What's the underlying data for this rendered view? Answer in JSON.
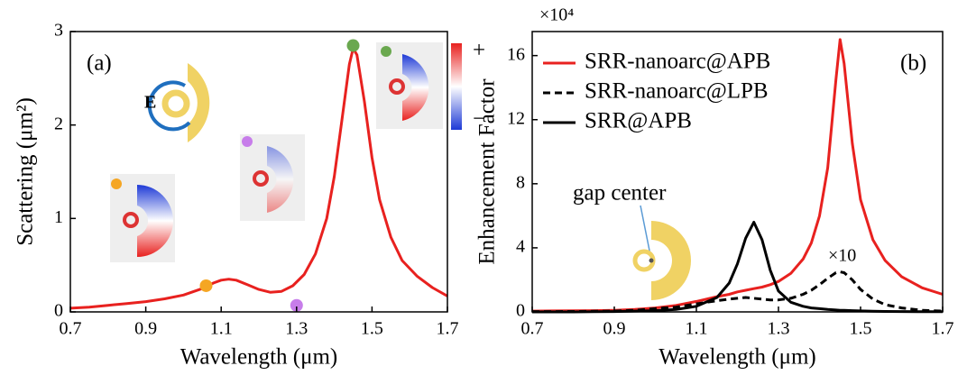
{
  "chart_data": [
    {
      "type": "line",
      "panel_label": "(a)",
      "field_label": "E",
      "colorbar_labels": [
        "+",
        "−"
      ],
      "xlabel": "Wavelength (μm)",
      "ylabel": "Scattering (μm²)",
      "color": "#e8211f",
      "x": [
        0.7,
        0.75,
        0.8,
        0.85,
        0.9,
        0.95,
        1.0,
        1.05,
        1.08,
        1.1,
        1.12,
        1.14,
        1.17,
        1.2,
        1.23,
        1.26,
        1.29,
        1.32,
        1.35,
        1.38,
        1.4,
        1.42,
        1.44,
        1.45,
        1.46,
        1.48,
        1.5,
        1.52,
        1.55,
        1.58,
        1.62,
        1.66,
        1.7
      ],
      "values": [
        0.04,
        0.05,
        0.07,
        0.09,
        0.11,
        0.14,
        0.18,
        0.25,
        0.31,
        0.34,
        0.35,
        0.34,
        0.29,
        0.24,
        0.21,
        0.22,
        0.28,
        0.4,
        0.62,
        1.0,
        1.45,
        2.05,
        2.65,
        2.82,
        2.75,
        2.25,
        1.65,
        1.2,
        0.8,
        0.55,
        0.38,
        0.26,
        0.17
      ],
      "markers": {
        "x": [
          1.06,
          1.3,
          1.45
        ],
        "values": [
          0.28,
          0.07,
          2.85
        ],
        "colors": [
          "#f5a623",
          "#c77dea",
          "#6aa84f"
        ]
      },
      "xlim": [
        0.7,
        1.7
      ],
      "xticks": [
        0.7,
        0.9,
        1.1,
        1.3,
        1.5,
        1.7
      ],
      "ylim": [
        0,
        3
      ],
      "yticks": [
        0,
        1,
        2,
        3
      ]
    },
    {
      "type": "line",
      "panel_label": "(b)",
      "multiplier": "×10⁴",
      "annotation": "gap center",
      "scale_note": "×10",
      "xlabel": "Wavelength (μm)",
      "ylabel": "Enhancement Factor",
      "legend": "upper left",
      "x": [
        0.7,
        0.75,
        0.8,
        0.85,
        0.9,
        0.95,
        1.0,
        1.05,
        1.1,
        1.15,
        1.18,
        1.2,
        1.22,
        1.24,
        1.26,
        1.28,
        1.3,
        1.33,
        1.36,
        1.38,
        1.4,
        1.42,
        1.44,
        1.45,
        1.46,
        1.48,
        1.5,
        1.53,
        1.56,
        1.6,
        1.65,
        1.7
      ],
      "series": [
        {
          "name": "SRR-nanoarc@APB",
          "color": "#e8211f",
          "dashed": false,
          "values": [
            0.05,
            0.06,
            0.07,
            0.08,
            0.1,
            0.15,
            0.25,
            0.4,
            0.65,
            0.95,
            1.1,
            1.25,
            1.35,
            1.45,
            1.55,
            1.7,
            1.9,
            2.4,
            3.3,
            4.3,
            6.0,
            9.0,
            14.5,
            17.0,
            15.5,
            10.5,
            7.0,
            4.5,
            3.2,
            2.2,
            1.5,
            1.1
          ]
        },
        {
          "name": "SRR-nanoarc@LPB",
          "color": "#000000",
          "dashed": true,
          "values": [
            0.02,
            0.02,
            0.03,
            0.04,
            0.05,
            0.1,
            0.2,
            0.3,
            0.5,
            0.7,
            0.8,
            0.85,
            0.9,
            0.85,
            0.8,
            0.75,
            0.75,
            0.85,
            1.1,
            1.35,
            1.7,
            2.1,
            2.45,
            2.5,
            2.45,
            2.0,
            1.4,
            0.8,
            0.45,
            0.25,
            0.1,
            0.05
          ]
        },
        {
          "name": "SRR@APB",
          "color": "#000000",
          "dashed": false,
          "values": [
            0.0,
            0.0,
            0.0,
            0.01,
            0.02,
            0.05,
            0.08,
            0.15,
            0.35,
            0.9,
            1.8,
            3.0,
            4.6,
            5.6,
            4.5,
            2.6,
            1.3,
            0.6,
            0.35,
            0.25,
            0.2,
            0.15,
            0.12,
            0.1,
            0.1,
            0.08,
            0.06,
            0.04,
            0.03,
            0.02,
            0.01,
            0.01
          ]
        }
      ],
      "xlim": [
        0.7,
        1.7
      ],
      "xticks": [
        0.7,
        0.9,
        1.1,
        1.3,
        1.5,
        1.7
      ],
      "ylim": [
        0,
        17.5
      ],
      "yticks": [
        0,
        4,
        8,
        12,
        16
      ]
    }
  ]
}
